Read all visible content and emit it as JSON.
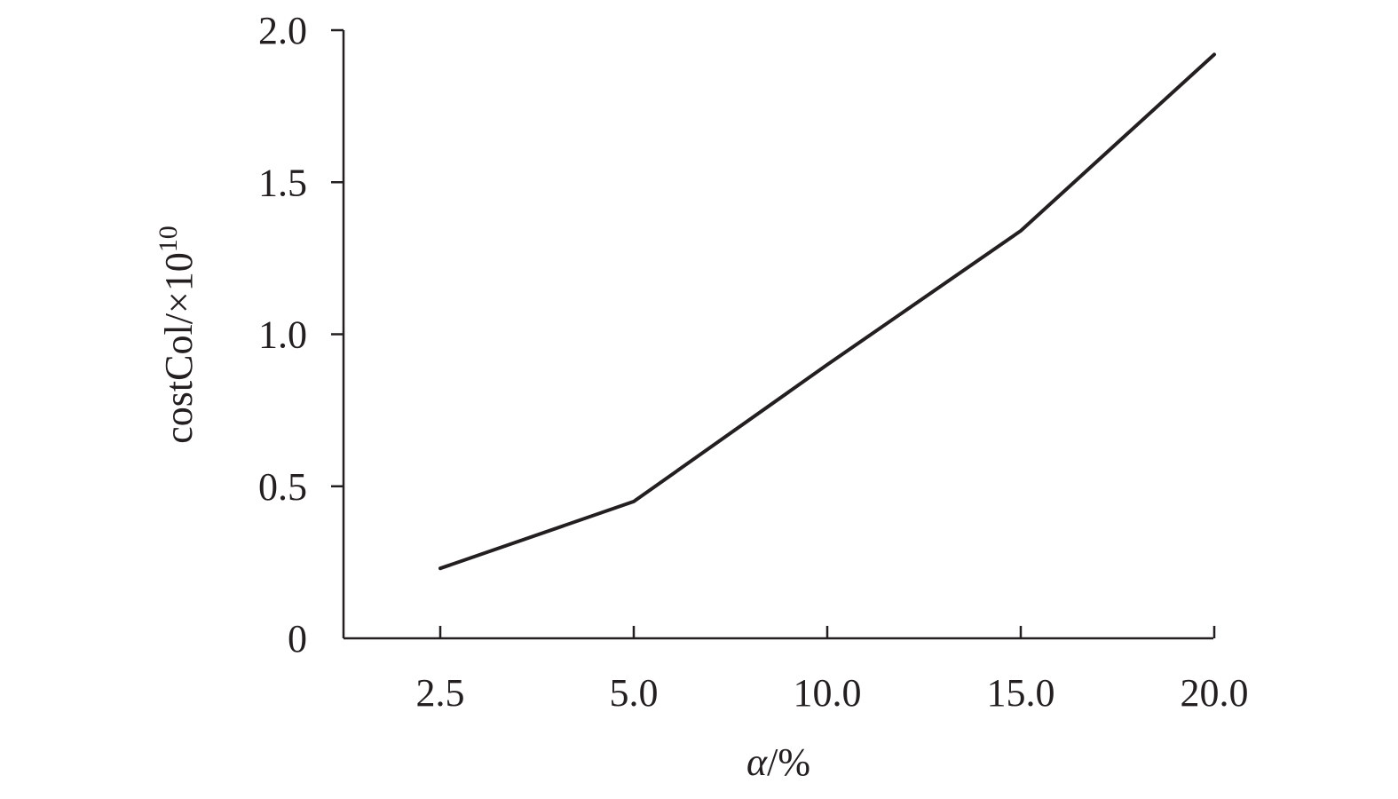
{
  "chart_data": {
    "type": "line",
    "categories": [
      "2.5",
      "5.0",
      "10.0",
      "15.0",
      "20.0"
    ],
    "series": [
      {
        "values": [
          0.23,
          0.45,
          0.9,
          1.34,
          1.92
        ]
      }
    ],
    "xlabel_italic": "α",
    "xlabel_unit": "/%",
    "ylabel": "costCol/×10",
    "ylabel_exponent": "10",
    "ylim": [
      0,
      2.0
    ],
    "yticks": [
      0,
      0.5,
      1.0,
      1.5,
      2.0
    ],
    "ytick_labels": [
      "0",
      "0.5",
      "1.0",
      "1.5",
      "2.0"
    ],
    "grid": false,
    "line_color": "#231f20"
  }
}
